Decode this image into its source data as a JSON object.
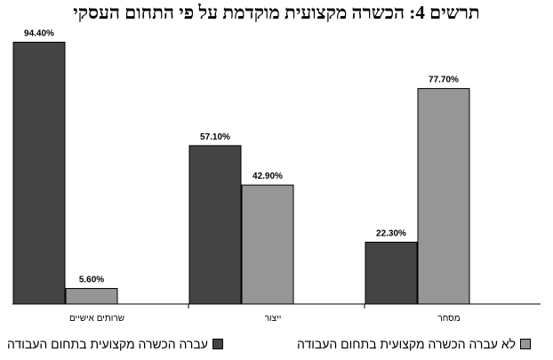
{
  "chart_data": {
    "type": "bar",
    "title": "תרשים 4: הכשרה מקצועית מוקדמת על פי התחום העסקי",
    "categories": [
      "שרותים אישיים",
      "ייצור",
      "מסחר"
    ],
    "series": [
      {
        "name": "עברה הכשרה מקצועית בתחום העבודה",
        "values": [
          94.4,
          57.1,
          22.3
        ],
        "labels": [
          "94.40%",
          "57.10%",
          "22.30%"
        ],
        "color": "#444444"
      },
      {
        "name": "לא עברה הכשרה מקצועית בתחום העבודה",
        "values": [
          5.6,
          42.9,
          77.7
        ],
        "labels": [
          "5.60%",
          "42.90%",
          "77.70%"
        ],
        "color": "#969696"
      }
    ],
    "ylim": [
      0,
      100
    ],
    "grid": false,
    "legend_position": "bottom"
  }
}
